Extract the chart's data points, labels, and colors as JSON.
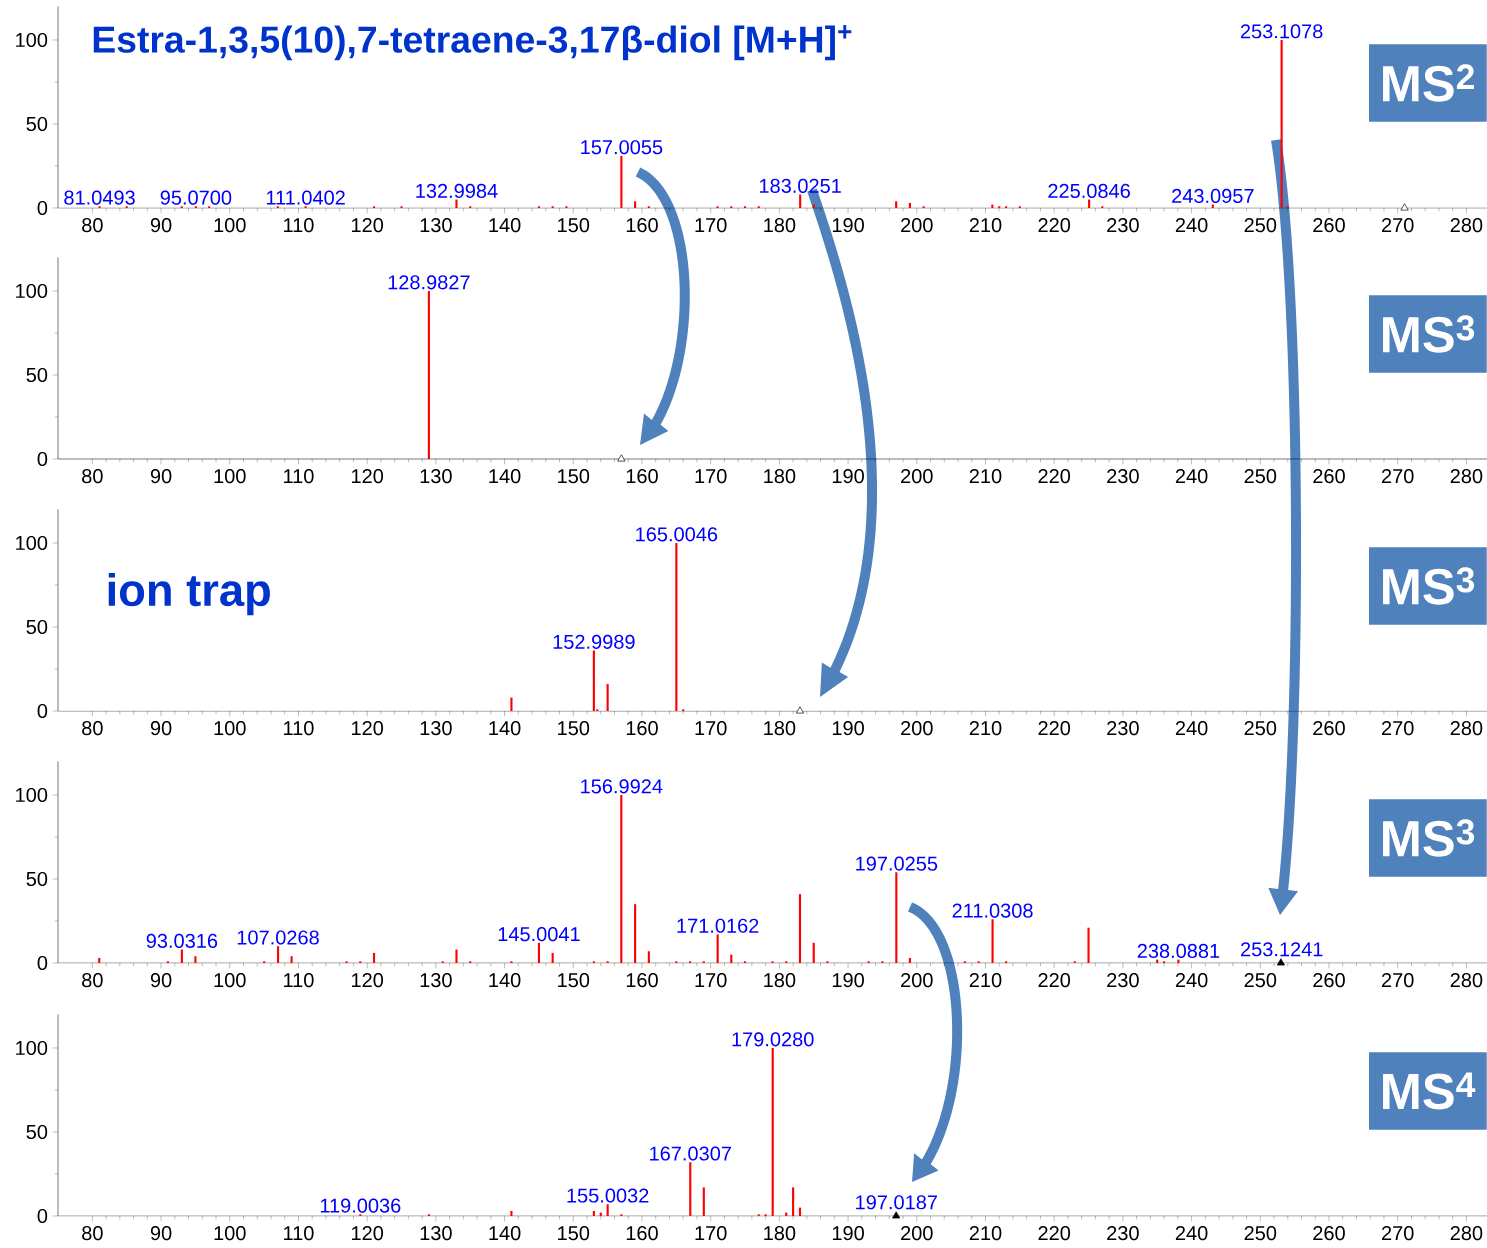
{
  "chart_data": [
    {
      "type": "bar",
      "title": "MS$^{2}$",
      "xlim": [
        75,
        283
      ],
      "ylim": [
        0,
        120
      ],
      "xticks": [
        80,
        90,
        100,
        110,
        120,
        130,
        140,
        150,
        160,
        170,
        180,
        190,
        200,
        210,
        220,
        230,
        240,
        250,
        260,
        270,
        280
      ],
      "yticks": [
        0,
        50,
        100
      ],
      "annotations": [
        "Estra-1,3,5(10),7-tetraene-3,17β-diol [M+H]$^{+}$",
        {
          "text": "81.0493",
          "x": 81.0493,
          "y": 1
        },
        {
          "text": "95.0700",
          "x": 95.07,
          "y": 1
        },
        {
          "text": "111.0402",
          "x": 111.0402,
          "y": 1
        },
        {
          "text": "132.9984",
          "x": 132.9984,
          "y": 5
        },
        {
          "text": "157.0055",
          "x": 157.0055,
          "y": 31
        },
        {
          "text": "183.0251",
          "x": 183.0251,
          "y": 8
        },
        {
          "text": "225.0846",
          "x": 225.0846,
          "y": 5
        },
        {
          "text": "243.0957",
          "x": 243.0957,
          "y": 2
        },
        {
          "text": "253.1078",
          "x": 253.1078,
          "y": 100
        }
      ],
      "series": [
        {
          "color": "#ff0000",
          "x": [
            81.0493,
            85,
            93,
            95.07,
            97,
            107,
            111.0402,
            121,
            125,
            132.9984,
            135,
            145,
            147,
            149,
            157.0055,
            159,
            161,
            171,
            173,
            175,
            177,
            183.0251,
            185,
            197,
            199,
            201,
            211,
            212,
            213,
            215,
            225.0846,
            227,
            243.0957,
            253.1078,
            254
          ],
          "values": [
            1,
            1,
            1,
            1,
            1,
            1,
            1,
            1,
            1,
            5,
            1,
            1,
            1,
            1,
            31,
            4,
            1,
            1,
            1,
            1,
            1,
            8,
            2,
            4,
            3,
            1,
            2,
            1,
            1,
            1,
            5,
            1,
            2,
            100,
            1
          ]
        },
        {
          "type": "scatter",
          "marker": "triangle",
          "color": "#ffffff",
          "x": [
            271
          ],
          "values": [
            0
          ]
        }
      ]
    },
    {
      "type": "bar",
      "title": "MS$^{3}$",
      "xlim": [
        75,
        283
      ],
      "ylim": [
        0,
        120
      ],
      "xticks": [
        80,
        90,
        100,
        110,
        120,
        130,
        140,
        150,
        160,
        170,
        180,
        190,
        200,
        210,
        220,
        230,
        240,
        250,
        260,
        270,
        280
      ],
      "yticks": [
        0,
        50,
        100
      ],
      "annotations": [
        {
          "text": "128.9827",
          "x": 128.9827,
          "y": 100
        }
      ],
      "series": [
        {
          "color": "#ff0000",
          "x": [
            128.9827
          ],
          "values": [
            100
          ]
        },
        {
          "type": "scatter",
          "marker": "triangle",
          "color": "#ffffff",
          "x": [
            157
          ],
          "values": [
            0
          ]
        }
      ]
    },
    {
      "type": "bar",
      "title": "MS$^{3}$",
      "xlim": [
        75,
        283
      ],
      "ylim": [
        0,
        120
      ],
      "xticks": [
        80,
        90,
        100,
        110,
        120,
        130,
        140,
        150,
        160,
        170,
        180,
        190,
        200,
        210,
        220,
        230,
        240,
        250,
        260,
        270,
        280
      ],
      "yticks": [
        0,
        50,
        100
      ],
      "annotations": [
        "ion trap",
        {
          "text": "152.9989",
          "x": 152.9989,
          "y": 36
        },
        {
          "text": "165.0046",
          "x": 165.0046,
          "y": 100
        }
      ],
      "series": [
        {
          "color": "#ff0000",
          "x": [
            141,
            152.9989,
            153.5,
            155,
            165.0046,
            166
          ],
          "values": [
            8,
            36,
            1,
            16,
            100,
            1
          ]
        },
        {
          "type": "scatter",
          "marker": "triangle",
          "color": "#ffffff",
          "x": [
            183
          ],
          "values": [
            0
          ]
        }
      ]
    },
    {
      "type": "bar",
      "title": "MS$^{3}$",
      "xlim": [
        75,
        283
      ],
      "ylim": [
        0,
        120
      ],
      "xticks": [
        80,
        90,
        100,
        110,
        120,
        130,
        140,
        150,
        160,
        170,
        180,
        190,
        200,
        210,
        220,
        230,
        240,
        250,
        260,
        270,
        280
      ],
      "yticks": [
        0,
        50,
        100
      ],
      "annotations": [
        {
          "text": "93.0316",
          "x": 93.0316,
          "y": 8
        },
        {
          "text": "107.0268",
          "x": 107.0268,
          "y": 10
        },
        {
          "text": "145.0041",
          "x": 145.0041,
          "y": 12
        },
        {
          "text": "156.9924",
          "x": 156.9924,
          "y": 100
        },
        {
          "text": "171.0162",
          "x": 171.0162,
          "y": 17
        },
        {
          "text": "197.0255",
          "x": 197.0255,
          "y": 54
        },
        {
          "text": "211.0308",
          "x": 211.0308,
          "y": 26
        },
        {
          "text": "238.0881",
          "x": 238.0881,
          "y": 2
        },
        {
          "text": "253.1241",
          "x": 253.1241,
          "y": 3
        }
      ],
      "series": [
        {
          "color": "#ff0000",
          "x": [
            81,
            91,
            93.0316,
            95,
            105,
            107.0268,
            109,
            117,
            119,
            121,
            131,
            133,
            135,
            141,
            145.0041,
            147,
            153,
            155,
            156.9924,
            159,
            161,
            165,
            167,
            169,
            171.0162,
            173,
            175,
            179,
            181,
            183,
            185,
            187,
            193,
            195,
            197.0255,
            199,
            207,
            209,
            211.0308,
            213,
            223,
            225,
            235,
            236,
            238.0881
          ],
          "values": [
            3,
            1,
            8,
            4,
            1,
            10,
            4,
            1,
            1,
            6,
            1,
            8,
            1,
            1,
            12,
            6,
            1,
            1,
            100,
            35,
            7,
            1,
            1,
            1,
            17,
            5,
            1,
            1,
            1,
            41,
            12,
            1,
            1,
            1,
            54,
            3,
            1,
            1,
            26,
            1,
            1,
            21,
            2,
            1,
            2
          ]
        },
        {
          "type": "scatter",
          "marker": "triangle",
          "color": "#000000",
          "x": [
            253
          ],
          "values": [
            0
          ]
        }
      ]
    },
    {
      "type": "bar",
      "title": "MS$^{4}$",
      "xlim": [
        75,
        283
      ],
      "ylim": [
        0,
        120
      ],
      "xticks": [
        80,
        90,
        100,
        110,
        120,
        130,
        140,
        150,
        160,
        170,
        180,
        190,
        200,
        210,
        220,
        230,
        240,
        250,
        260,
        270,
        280
      ],
      "yticks": [
        0,
        50,
        100
      ],
      "annotations": [
        {
          "text": "119.0036",
          "x": 119.0036,
          "y": 1
        },
        {
          "text": "155.0032",
          "x": 155.0032,
          "y": 7
        },
        {
          "text": "167.0307",
          "x": 167.0307,
          "y": 32
        },
        {
          "text": "179.0280",
          "x": 179.028,
          "y": 100
        },
        {
          "text": "197.0187",
          "x": 197.0187,
          "y": 3
        }
      ],
      "series": [
        {
          "color": "#ff0000",
          "x": [
            119.0036,
            129,
            141,
            153,
            154,
            155.0032,
            157,
            167.0307,
            169,
            177,
            178,
            179.028,
            181,
            182,
            183
          ],
          "values": [
            1,
            1,
            3,
            3,
            2,
            7,
            1,
            32,
            17,
            1,
            1,
            100,
            2,
            17,
            5
          ]
        },
        {
          "type": "scatter",
          "marker": "triangle",
          "color": "#000000",
          "x": [
            197
          ],
          "values": [
            0
          ]
        }
      ]
    }
  ]
}
